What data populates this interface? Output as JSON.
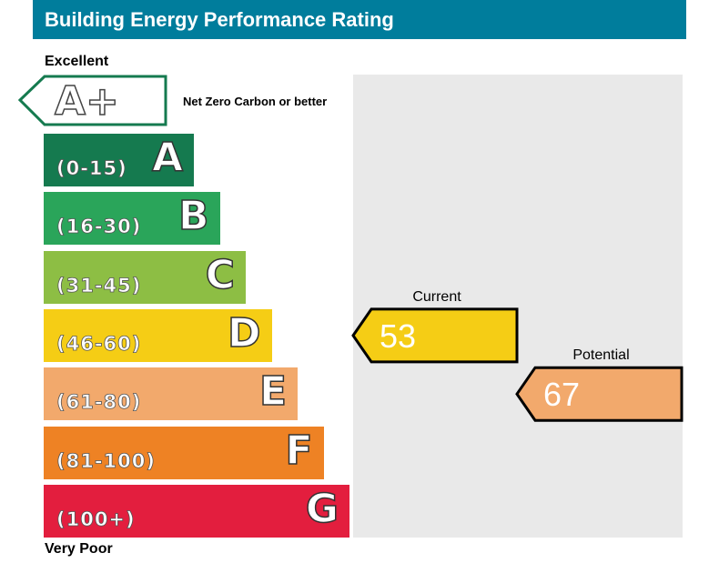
{
  "header": {
    "title": "Building Energy Performance Rating"
  },
  "scale": {
    "top_label": "Excellent",
    "bottom_label": "Very Poor"
  },
  "aplus": {
    "letter": "A+",
    "note": "Net Zero Carbon or better",
    "color": "#157a4f"
  },
  "chart_data": {
    "type": "bar",
    "title": "Building Energy Performance Rating",
    "bands": [
      {
        "letter": "A",
        "range": "(0-15)",
        "min": 0,
        "max": 15,
        "color": "#157a4f"
      },
      {
        "letter": "B",
        "range": "(16-30)",
        "min": 16,
        "max": 30,
        "color": "#2aa55a"
      },
      {
        "letter": "C",
        "range": "(31-45)",
        "min": 31,
        "max": 45,
        "color": "#8dbe44"
      },
      {
        "letter": "D",
        "range": "(46-60)",
        "min": 46,
        "max": 60,
        "color": "#f5cd15"
      },
      {
        "letter": "E",
        "range": "(61-80)",
        "min": 61,
        "max": 80,
        "color": "#f2a96c"
      },
      {
        "letter": "F",
        "range": "(81-100)",
        "min": 81,
        "max": 100,
        "color": "#ee8224"
      },
      {
        "letter": "G",
        "range": "(100+)",
        "min": 100,
        "max": null,
        "color": "#e31e3e"
      }
    ],
    "ratings": [
      {
        "label": "Current",
        "value": 53,
        "band": "D",
        "color": "#f5cd15"
      },
      {
        "label": "Potential",
        "value": 67,
        "band": "E",
        "color": "#f2a96c"
      }
    ]
  }
}
